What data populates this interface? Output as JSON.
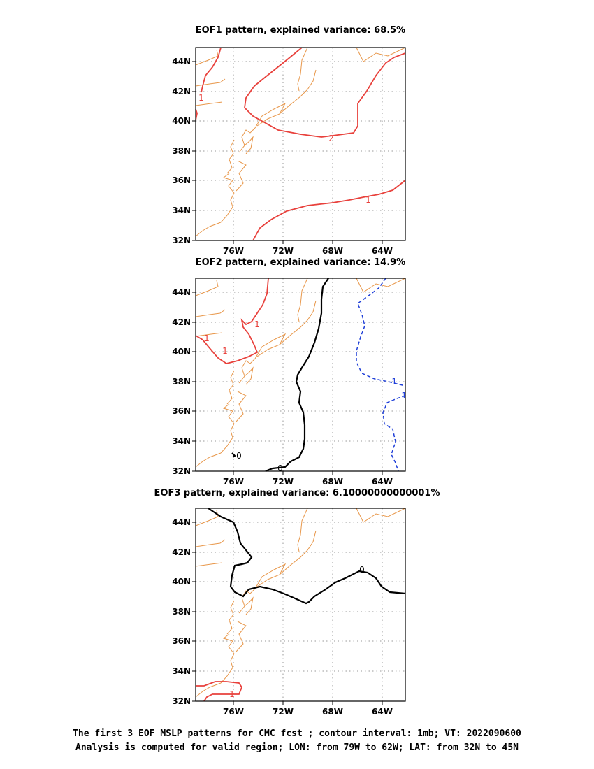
{
  "panels": [
    {
      "title": "EOF1 pattern, explained variance: 68.5%",
      "y_ticks": [
        "44N",
        "42N",
        "40N",
        "38N",
        "36N",
        "34N",
        "32N"
      ],
      "x_ticks": [
        "76W",
        "72W",
        "68W",
        "64W"
      ],
      "contour_labels": [
        {
          "text": "1",
          "color": "#e8413c"
        },
        {
          "text": "2",
          "color": "#e8413c"
        },
        {
          "text": "1",
          "color": "#e8413c"
        }
      ]
    },
    {
      "title": "EOF2 pattern, explained variance: 14.9%",
      "y_ticks": [
        "44N",
        "42N",
        "40N",
        "38N",
        "36N",
        "34N",
        "32N"
      ],
      "x_ticks": [
        "76W",
        "72W",
        "68W",
        "64W"
      ],
      "contour_labels": [
        {
          "text": "1",
          "color": "#e8413c"
        },
        {
          "text": "1",
          "color": "#e8413c"
        },
        {
          "text": "1",
          "color": "#e8413c"
        },
        {
          "text": "0",
          "color": "#000000"
        },
        {
          "text": "0",
          "color": "#000000"
        },
        {
          "text": "-1",
          "color": "#1f3fd8"
        },
        {
          "text": "-1",
          "color": "#1f3fd8"
        }
      ]
    },
    {
      "title": "EOF3 pattern, explained variance: 6.10000000000001%",
      "y_ticks": [
        "44N",
        "42N",
        "40N",
        "38N",
        "36N",
        "34N",
        "32N"
      ],
      "x_ticks": [
        "76W",
        "72W",
        "68W",
        "64W"
      ],
      "contour_labels": [
        {
          "text": "0",
          "color": "#000000"
        },
        {
          "text": "1",
          "color": "#e8413c"
        }
      ]
    }
  ],
  "caption": {
    "line1": "The first 3 EOF MSLP patterns for CMC fcst ; contour interval: 1mb; VT: 2022090600",
    "line2": "Analysis is computed for valid region; LON: from 79W to 62W; LAT: from 32N to 45N"
  },
  "colors": {
    "coastline": "#e8974a",
    "positive_contour": "#e8413c",
    "zero_contour": "#000000",
    "negative_contour": "#1f3fd8",
    "grid": "#999999"
  }
}
